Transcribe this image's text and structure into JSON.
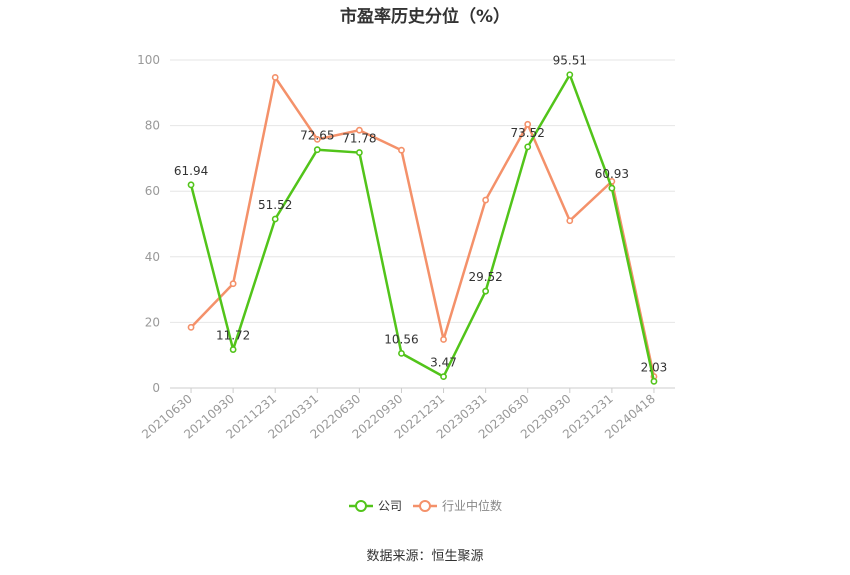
{
  "title": "市盈率历史分位（%）",
  "source": "数据来源：恒生聚源",
  "colors": {
    "company": "#52c41a",
    "industry": "#f4916a",
    "grid": "#e6e6e6",
    "axis": "#cccccc"
  },
  "chart_data": {
    "type": "line",
    "title": "市盈率历史分位（%）",
    "categories": [
      "20210630",
      "20210930",
      "20211231",
      "20220331",
      "20220630",
      "20220930",
      "20221231",
      "20230331",
      "20230630",
      "20230930",
      "20231231",
      "20240418"
    ],
    "ylim": [
      0,
      100
    ],
    "yticks": [
      0,
      20,
      40,
      60,
      80,
      100
    ],
    "grid": true,
    "legend_position": "bottom",
    "series": [
      {
        "name": "公司",
        "color": "#52c41a",
        "values": [
          61.94,
          11.72,
          51.52,
          72.65,
          71.78,
          10.56,
          3.47,
          29.52,
          73.52,
          95.51,
          60.93,
          2.03
        ],
        "labels": [
          "61.94",
          "11.72",
          "51.52",
          "72.65",
          "71.78",
          "10.56",
          "3.47",
          "29.52",
          "73.52",
          "95.51",
          "60.93",
          "2.03"
        ]
      },
      {
        "name": "行业中位数",
        "color": "#f4916a",
        "values": [
          18.5,
          31.8,
          94.7,
          75.8,
          78.6,
          72.5,
          14.8,
          57.3,
          80.4,
          51.0,
          63.0,
          3.5
        ]
      }
    ]
  }
}
